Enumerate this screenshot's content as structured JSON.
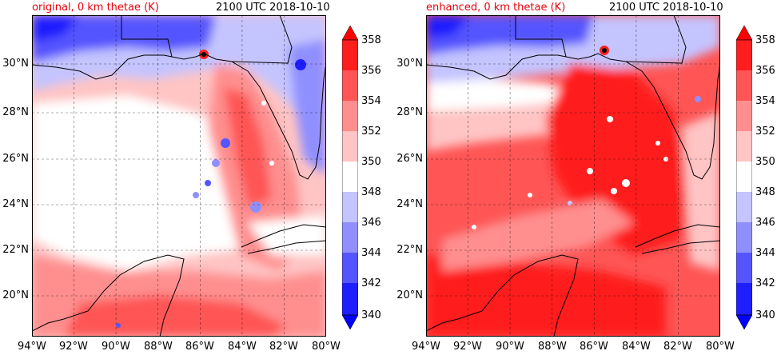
{
  "panels": [
    {
      "title": "original, 0 km thetae (K)",
      "time": "2100 UTC 2018-10-10",
      "variant": "original"
    },
    {
      "title": "enhanced, 0 km thetae (K)",
      "time": "2100 UTC 2018-10-10",
      "variant": "enhanced"
    }
  ],
  "map": {
    "lon_range": [
      -94,
      -80
    ],
    "lat_range": [
      18.0,
      32.0
    ],
    "lon_ticks": [
      "94°W",
      "92°W",
      "90°W",
      "88°W",
      "86°W",
      "84°W",
      "82°W",
      "80°W"
    ],
    "lat_ticks": [
      "20°N",
      "22°N",
      "24°N",
      "26°N",
      "28°N",
      "30°N"
    ],
    "grid": true
  },
  "colorbar": {
    "ticks": [
      "340",
      "342",
      "344",
      "346",
      "348",
      "350",
      "352",
      "354",
      "356",
      "358"
    ],
    "levels": [
      340,
      342,
      344,
      346,
      348,
      350,
      352,
      354,
      356,
      358
    ],
    "colors": [
      "#1e1eff",
      "#5555ff",
      "#8f8fff",
      "#c4c4ff",
      "#ffffff",
      "#ffc4c4",
      "#ff8f8f",
      "#ff5555",
      "#ff1e1e"
    ],
    "under_color": "#0000ff",
    "over_color": "#ff0000",
    "extend": "both"
  }
}
